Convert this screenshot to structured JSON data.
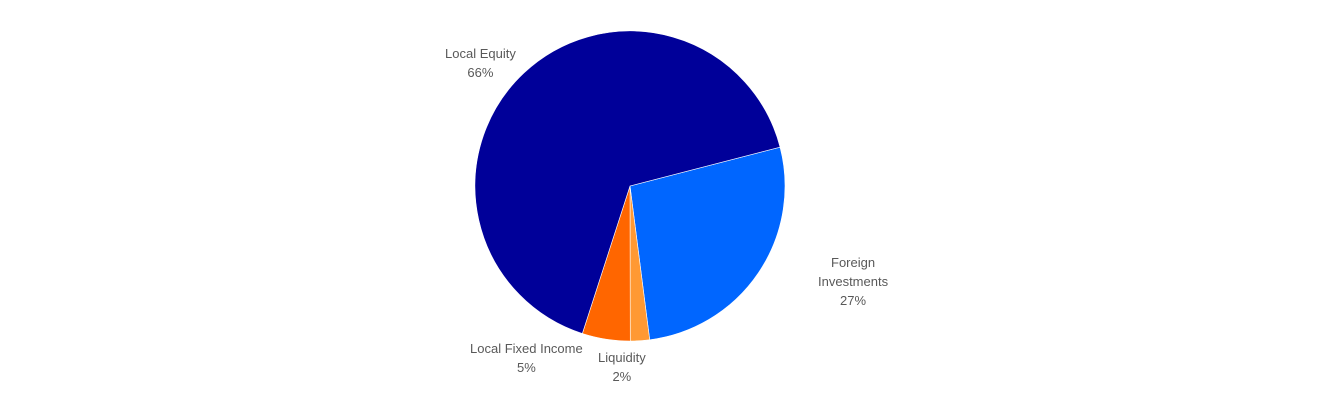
{
  "chart_data": {
    "type": "pie",
    "title": "",
    "unit": "%",
    "slices": [
      {
        "name": "Local Equity",
        "label_lines": [
          "Local Equity"
        ],
        "value": 66,
        "display": "66%",
        "color": "#000099"
      },
      {
        "name": "Foreign Investments",
        "label_lines": [
          "Foreign",
          "Investments"
        ],
        "value": 27,
        "display": "27%",
        "color": "#0066FF"
      },
      {
        "name": "Liquidity",
        "label_lines": [
          "Liquidity"
        ],
        "value": 2,
        "display": "2%",
        "color": "#FF9933"
      },
      {
        "name": "Local Fixed Income",
        "label_lines": [
          "Local Fixed Income"
        ],
        "value": 5,
        "display": "5%",
        "color": "#FF6600"
      }
    ],
    "legend": "none",
    "data_labels": "outside"
  }
}
